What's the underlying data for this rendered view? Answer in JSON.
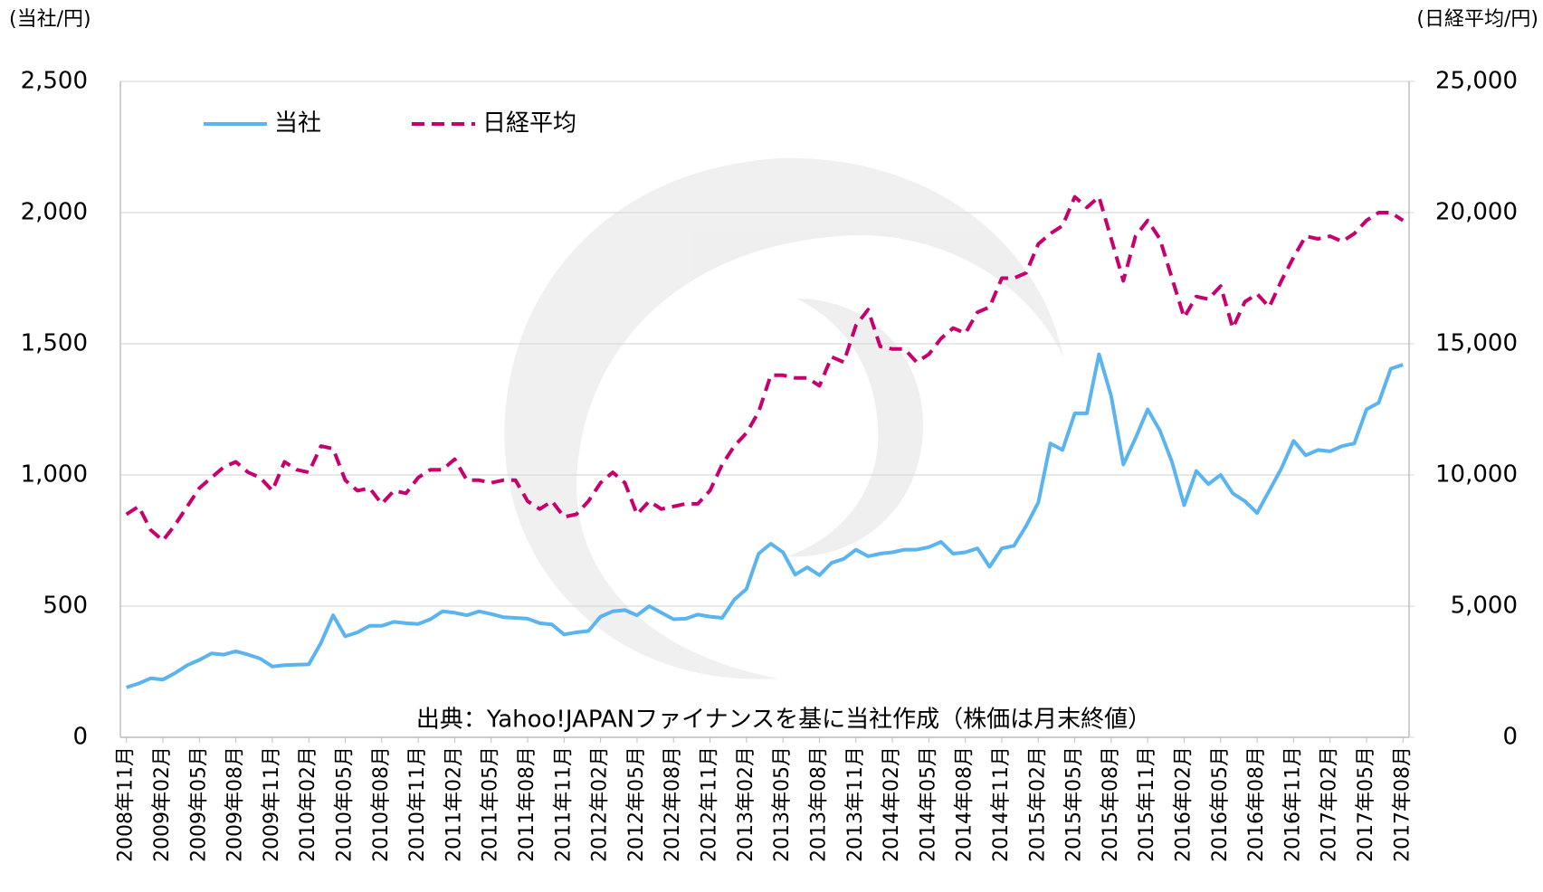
{
  "chart_data": {
    "type": "line",
    "y_label": "(当社/円)",
    "y2_label": "(日経平均/円)",
    "annotation": "出典：Yahoo!JAPANファイナンスを基に当社作成（株価は月末終値）",
    "legend": "upper left",
    "grid": true,
    "categories": [
      "2008年11月",
      null,
      null,
      "2009年02月",
      null,
      null,
      "2009年05月",
      null,
      null,
      "2009年08月",
      null,
      null,
      "2009年11月",
      null,
      null,
      "2010年02月",
      null,
      null,
      "2010年05月",
      null,
      null,
      "2010年08月",
      null,
      null,
      "2010年11月",
      null,
      null,
      "2011年02月",
      null,
      null,
      "2011年05月",
      null,
      null,
      "2011年08月",
      null,
      null,
      "2011年11月",
      null,
      null,
      "2012年02月",
      null,
      null,
      "2012年05月",
      null,
      null,
      "2012年08月",
      null,
      null,
      "2012年11月",
      null,
      null,
      "2013年02月",
      null,
      null,
      "2013年05月",
      null,
      null,
      "2013年08月",
      null,
      null,
      "2013年11月",
      null,
      null,
      "2014年02月",
      null,
      null,
      "2014年05月",
      null,
      null,
      "2014年08月",
      null,
      null,
      "2014年11月",
      null,
      null,
      "2015年02月",
      null,
      null,
      "2015年05月",
      null,
      null,
      "2015年08月",
      null,
      null,
      "2015年11月",
      null,
      null,
      "2016年02月",
      null,
      null,
      "2016年05月",
      null,
      null,
      "2016年08月",
      null,
      null,
      "2016年11月",
      null,
      null,
      "2017年02月",
      null,
      null,
      "2017年05月",
      null,
      null,
      "2017年08月"
    ],
    "series": [
      {
        "name": "当社",
        "color": "#5ab4f0",
        "dash": false,
        "values": [
          190,
          205,
          225,
          220,
          245,
          275,
          295,
          320,
          315,
          328,
          315,
          300,
          270,
          275,
          277,
          278,
          360,
          465,
          385,
          400,
          425,
          425,
          440,
          435,
          432,
          450,
          480,
          475,
          465,
          480,
          470,
          458,
          455,
          452,
          435,
          430,
          392,
          400,
          405,
          460,
          480,
          485,
          465,
          500,
          475,
          450,
          452,
          468,
          460,
          455,
          525,
          565,
          700,
          738,
          705,
          620,
          648,
          618,
          665,
          680,
          715,
          690,
          700,
          705,
          715,
          715,
          725,
          745,
          700,
          705,
          720,
          650,
          720,
          730,
          805,
          895,
          1120,
          1095,
          1235,
          1235,
          1460,
          1300,
          1040,
          1140,
          1250,
          1170,
          1050,
          885,
          1015,
          965,
          1000,
          930,
          900,
          855,
          940,
          1025,
          1130,
          1075,
          1095,
          1090,
          1110,
          1120,
          1250,
          1275,
          1405,
          1420
        ]
      },
      {
        "name": "日経平均",
        "color": "#c8006e",
        "dash": true,
        "axis": "y2",
        "values": [
          8500,
          8800,
          7900,
          7500,
          8100,
          8800,
          9500,
          9900,
          10300,
          10500,
          10100,
          9900,
          9400,
          10500,
          10200,
          10100,
          11100,
          11000,
          9800,
          9400,
          9500,
          8900,
          9400,
          9300,
          9900,
          10200,
          10200,
          10600,
          9800,
          9800,
          9700,
          9800,
          9800,
          9000,
          8700,
          9000,
          8400,
          8500,
          9000,
          9700,
          10100,
          9700,
          8500,
          9000,
          8700,
          8800,
          8900,
          8900,
          9400,
          10400,
          11100,
          11600,
          12400,
          13800,
          13800,
          13700,
          13700,
          13400,
          14500,
          14300,
          15700,
          16300,
          14900,
          14800,
          14800,
          14300,
          14600,
          15200,
          15600,
          15400,
          16200,
          16400,
          17500,
          17500,
          17700,
          18800,
          19200,
          19500,
          20600,
          20200,
          20600,
          19000,
          17400,
          19100,
          19700,
          19000,
          17500,
          16000,
          16800,
          16700,
          17200,
          15600,
          16600,
          16900,
          16400,
          17400,
          18300,
          19100,
          19000,
          19100,
          18900,
          19200,
          19700,
          20000,
          20000,
          19700
        ]
      }
    ],
    "ylim": [
      0,
      2500
    ],
    "yticks": [
      0,
      500,
      {
        "value": 1000,
        "label": "1,000"
      },
      {
        "value": 1500,
        "label": "1,500"
      },
      {
        "value": 2000,
        "label": "2,000"
      },
      {
        "value": 2500,
        "label": "2,500"
      }
    ],
    "y2lim": [
      0,
      25000
    ],
    "y2ticks": [
      0,
      {
        "value": 5000,
        "label": "5,000"
      },
      {
        "value": 10000,
        "label": "10,000"
      },
      {
        "value": 15000,
        "label": "15,000"
      },
      {
        "value": 20000,
        "label": "20,000"
      },
      {
        "value": 25000,
        "label": "25,000"
      }
    ]
  }
}
